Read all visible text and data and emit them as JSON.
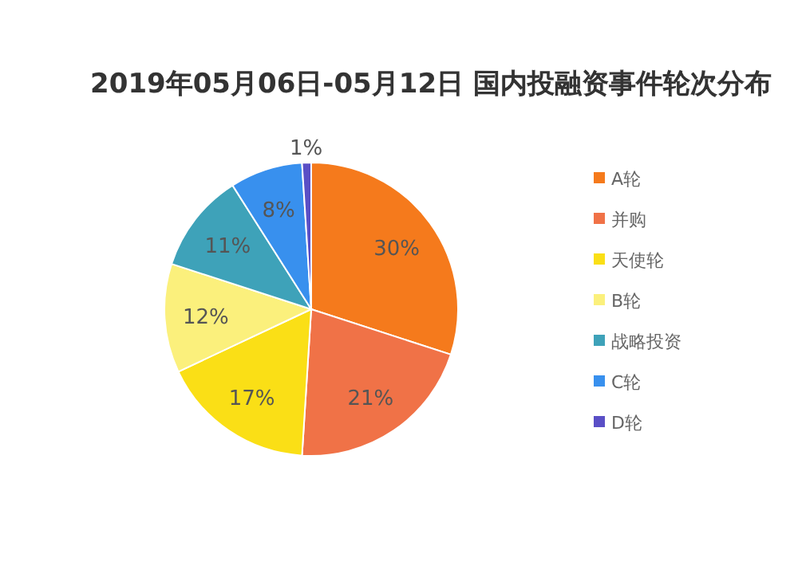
{
  "chart_data": {
    "type": "pie",
    "title": "2019年05月06日-05月12日 国内投融资事件轮次分布",
    "categories": [
      "A轮",
      "并购",
      "天使轮",
      "B轮",
      "战略投资",
      "C轮",
      "D轮"
    ],
    "values": [
      30,
      21,
      17,
      12,
      11,
      8,
      1
    ],
    "value_labels": [
      "30%",
      "21%",
      "17%",
      "12%",
      "11%",
      "8%",
      "1%"
    ],
    "colors": [
      "#f57a1c",
      "#f07247",
      "#fadf16",
      "#fbf07c",
      "#3ea2b9",
      "#3890ee",
      "#5a4fc6"
    ],
    "legend": "right"
  }
}
